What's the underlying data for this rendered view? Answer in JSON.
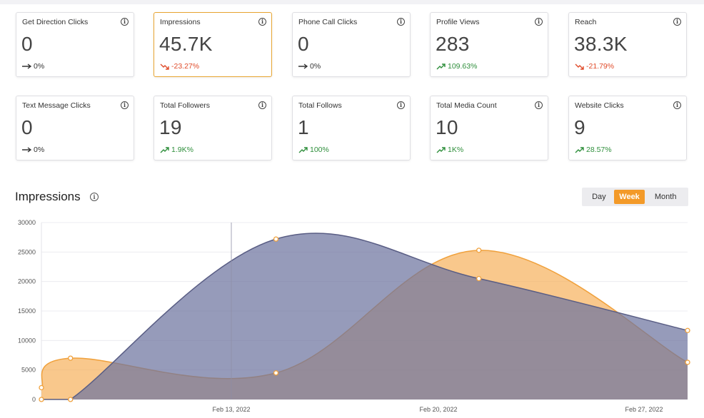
{
  "cards": [
    {
      "label": "Get Direction Clicks",
      "value": "0",
      "change": "0%",
      "trend": "neutral"
    },
    {
      "label": "Impressions",
      "value": "45.7K",
      "change": "-23.27%",
      "trend": "down",
      "active": true
    },
    {
      "label": "Phone Call Clicks",
      "value": "0",
      "change": "0%",
      "trend": "neutral"
    },
    {
      "label": "Profile Views",
      "value": "283",
      "change": "109.63%",
      "trend": "up"
    },
    {
      "label": "Reach",
      "value": "38.3K",
      "change": "-21.79%",
      "trend": "down"
    },
    {
      "label": "Text Message Clicks",
      "value": "0",
      "change": "0%",
      "trend": "neutral"
    },
    {
      "label": "Total Followers",
      "value": "19",
      "change": "1.9K%",
      "trend": "up"
    },
    {
      "label": "Total Follows",
      "value": "1",
      "change": "100%",
      "trend": "up"
    },
    {
      "label": "Total Media Count",
      "value": "10",
      "change": "1K%",
      "trend": "up"
    },
    {
      "label": "Website Clicks",
      "value": "9",
      "change": "28.57%",
      "trend": "up"
    }
  ],
  "info_icon": "info-icon",
  "section": {
    "title": "Impressions"
  },
  "range_toggle": {
    "options": [
      "Day",
      "Week",
      "Month"
    ],
    "selected": "Week"
  },
  "colors": {
    "accent": "#f39a29",
    "active_border": "#e8a531",
    "down": "#e04b2a",
    "up": "#2f8f3c",
    "series_current": "#7c82a6",
    "series_previous": "#f6b566"
  },
  "chart_data": {
    "type": "area",
    "y_ticks": [
      0,
      5000,
      10000,
      15000,
      20000,
      25000,
      30000
    ],
    "ylim": [
      0,
      30000
    ],
    "x_tick_labels": [
      "Feb 13, 2022",
      "Feb 20, 2022",
      "Feb 27, 2022"
    ],
    "series": [
      {
        "values": [
          0,
          0,
          27200,
          20500,
          11700
        ],
        "color": "#7c82a6"
      },
      {
        "values": [
          2000,
          7000,
          4500,
          25300,
          6300
        ],
        "color": "#f6b566"
      }
    ],
    "grid": true
  }
}
